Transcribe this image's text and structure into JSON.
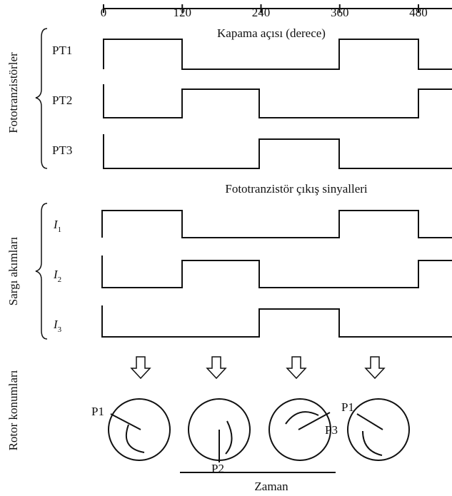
{
  "axis": {
    "label": "Kapama açısı (derece)",
    "ticks": [
      0,
      120,
      240,
      360,
      480
    ]
  },
  "photo_group": {
    "label": "Fototranzistörler",
    "rows": [
      "PT1",
      "PT2",
      "PT3"
    ],
    "caption": "Fototranzistör çıkış sinyalleri"
  },
  "current_group": {
    "label": "Sargı akımları",
    "rows": [
      {
        "symbol": "I",
        "subscript": "1"
      },
      {
        "symbol": "I",
        "subscript": "2"
      },
      {
        "symbol": "I",
        "subscript": "3"
      }
    ]
  },
  "rotor_group": {
    "label": "Rotor konumları",
    "markers": [
      "P1",
      "P2",
      "P3",
      "P1"
    ],
    "time_label": "Zaman"
  }
}
